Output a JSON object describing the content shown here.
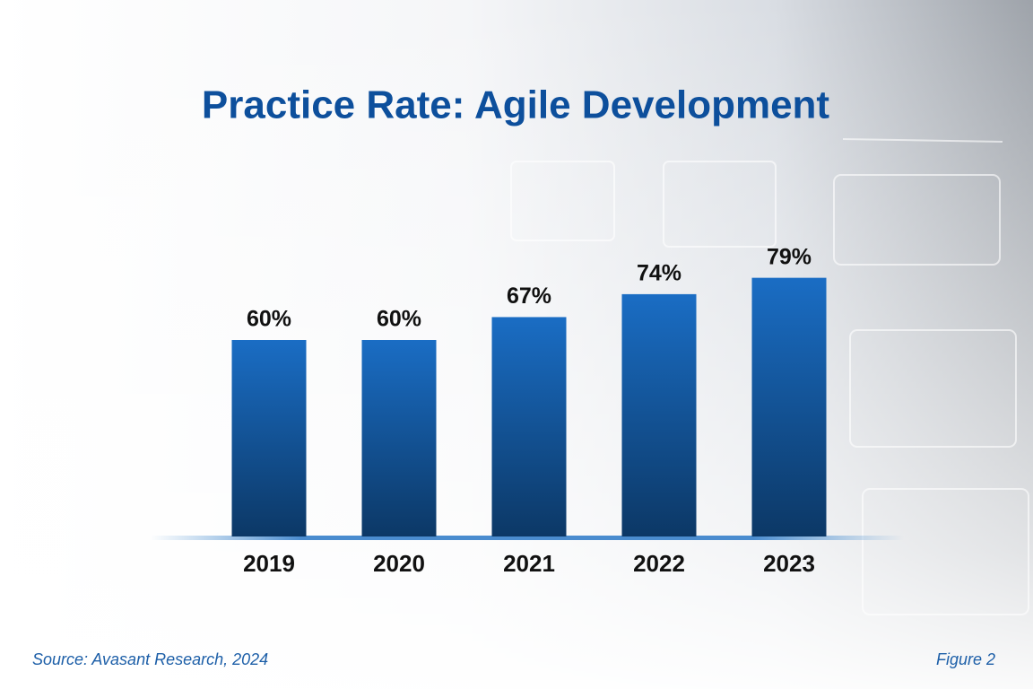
{
  "chart_data": {
    "type": "bar",
    "title": "Practice Rate: Agile Development",
    "categories": [
      "2019",
      "2020",
      "2021",
      "2022",
      "2023"
    ],
    "values": [
      60,
      60,
      67,
      74,
      79
    ],
    "value_labels": [
      "60%",
      "60%",
      "67%",
      "74%",
      "79%"
    ],
    "color": "#1565b8",
    "source": "Source: Avasant Research, 2024",
    "figure_label": "Figure 2"
  }
}
